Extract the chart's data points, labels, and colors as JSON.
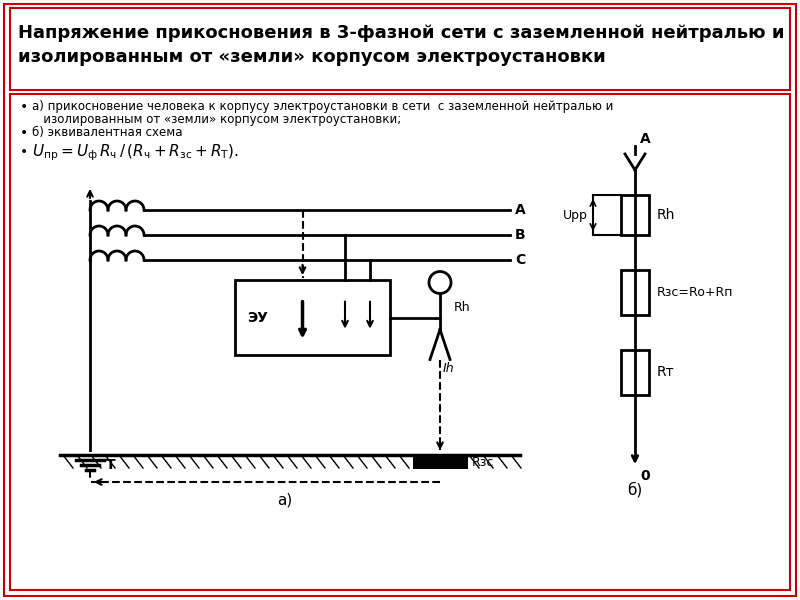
{
  "title_line1": "Напряжение прикосновения в 3-фазной сети с заземленной нейтралью и",
  "title_line2": "изолированным от «земли» корпусом электроустановки",
  "bullet1a": "а) прикосновение человека к корпусу электроустановки в сети  с заземленной нейтралью и",
  "bullet1b": "   изолированным от «земли» корпусом электроустановки;",
  "bullet2": "б) эквивалентная схема",
  "formula": "$U_{пр} = U_{ф}\\, R_{ч}\\, /\\, (R_{ч} + R_{зс} + R_{Т}).$",
  "label_a": "а)",
  "label_b": "б)",
  "bg_color": "#ffffff",
  "border_color": "#cc0000",
  "text_color": "#000000",
  "lw": 2.0
}
